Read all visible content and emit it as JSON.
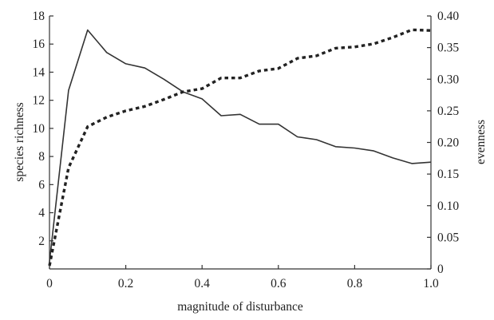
{
  "chart_data": {
    "type": "line",
    "xlabel": "magnitude of disturbance",
    "ylabel": "species richness",
    "y2label": "evenness",
    "xlim": [
      0,
      1.0
    ],
    "ylim": [
      0,
      18
    ],
    "y2lim": [
      0,
      0.4
    ],
    "grid": false,
    "legend": "none",
    "x_ticks": [
      "0",
      "0.2",
      "0.4",
      "0.6",
      "0.8",
      "1.0"
    ],
    "y_ticks": [
      "2",
      "4",
      "6",
      "8",
      "10",
      "12",
      "14",
      "16",
      "18"
    ],
    "y2_ticks": [
      "0",
      "0.05",
      "0.10",
      "0.15",
      "0.20",
      "0.25",
      "0.30",
      "0.35",
      "0.40"
    ],
    "series": [
      {
        "axis": "left",
        "style": "solid",
        "color": "#333333",
        "x": [
          0.0,
          0.05,
          0.1,
          0.15,
          0.2,
          0.25,
          0.3,
          0.35,
          0.4,
          0.45,
          0.5,
          0.55,
          0.6,
          0.65,
          0.7,
          0.75,
          0.8,
          0.85,
          0.9,
          0.95,
          1.0
        ],
        "y": [
          0.5,
          12.7,
          17.0,
          15.4,
          14.6,
          14.3,
          13.5,
          12.6,
          12.1,
          10.9,
          11.0,
          10.3,
          10.3,
          9.4,
          9.2,
          8.7,
          8.6,
          8.4,
          7.9,
          7.5,
          7.6
        ]
      },
      {
        "axis": "right",
        "style": "dotted",
        "color": "#222222",
        "x": [
          0.0,
          0.05,
          0.1,
          0.15,
          0.2,
          0.25,
          0.3,
          0.35,
          0.4,
          0.45,
          0.5,
          0.55,
          0.6,
          0.65,
          0.7,
          0.75,
          0.8,
          0.85,
          0.9,
          0.95,
          1.0
        ],
        "y": [
          0.005,
          0.16,
          0.225,
          0.24,
          0.25,
          0.257,
          0.268,
          0.28,
          0.285,
          0.302,
          0.302,
          0.313,
          0.317,
          0.333,
          0.337,
          0.349,
          0.351,
          0.356,
          0.366,
          0.378,
          0.377
        ]
      }
    ]
  }
}
